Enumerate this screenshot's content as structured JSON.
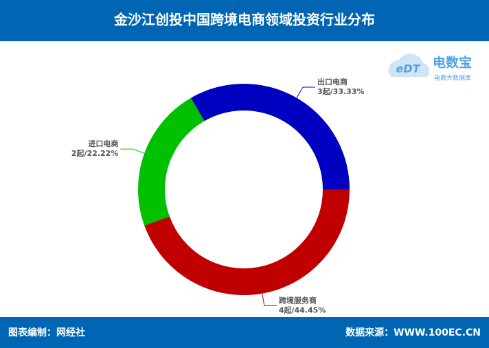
{
  "chart_data": {
    "type": "pie",
    "title": "金沙江创投中国跨境电商领域投资行业分布",
    "categories": [
      "跨境服务商",
      "进口电商",
      "出口电商"
    ],
    "values": [
      44.45,
      22.22,
      33.33
    ],
    "value_labels": [
      "4起/44.45%",
      "2起/22.22%",
      "3起/33.33%"
    ],
    "colors": [
      "#c00000",
      "#00c000",
      "#0000c0"
    ],
    "donut": true
  },
  "logo": {
    "mark": "eDT",
    "name": "电数宝",
    "tagline": "电商大数据库"
  },
  "footer": {
    "left": "图表编制：网经社",
    "right": "数据来源：WWW.100EC.CN"
  }
}
